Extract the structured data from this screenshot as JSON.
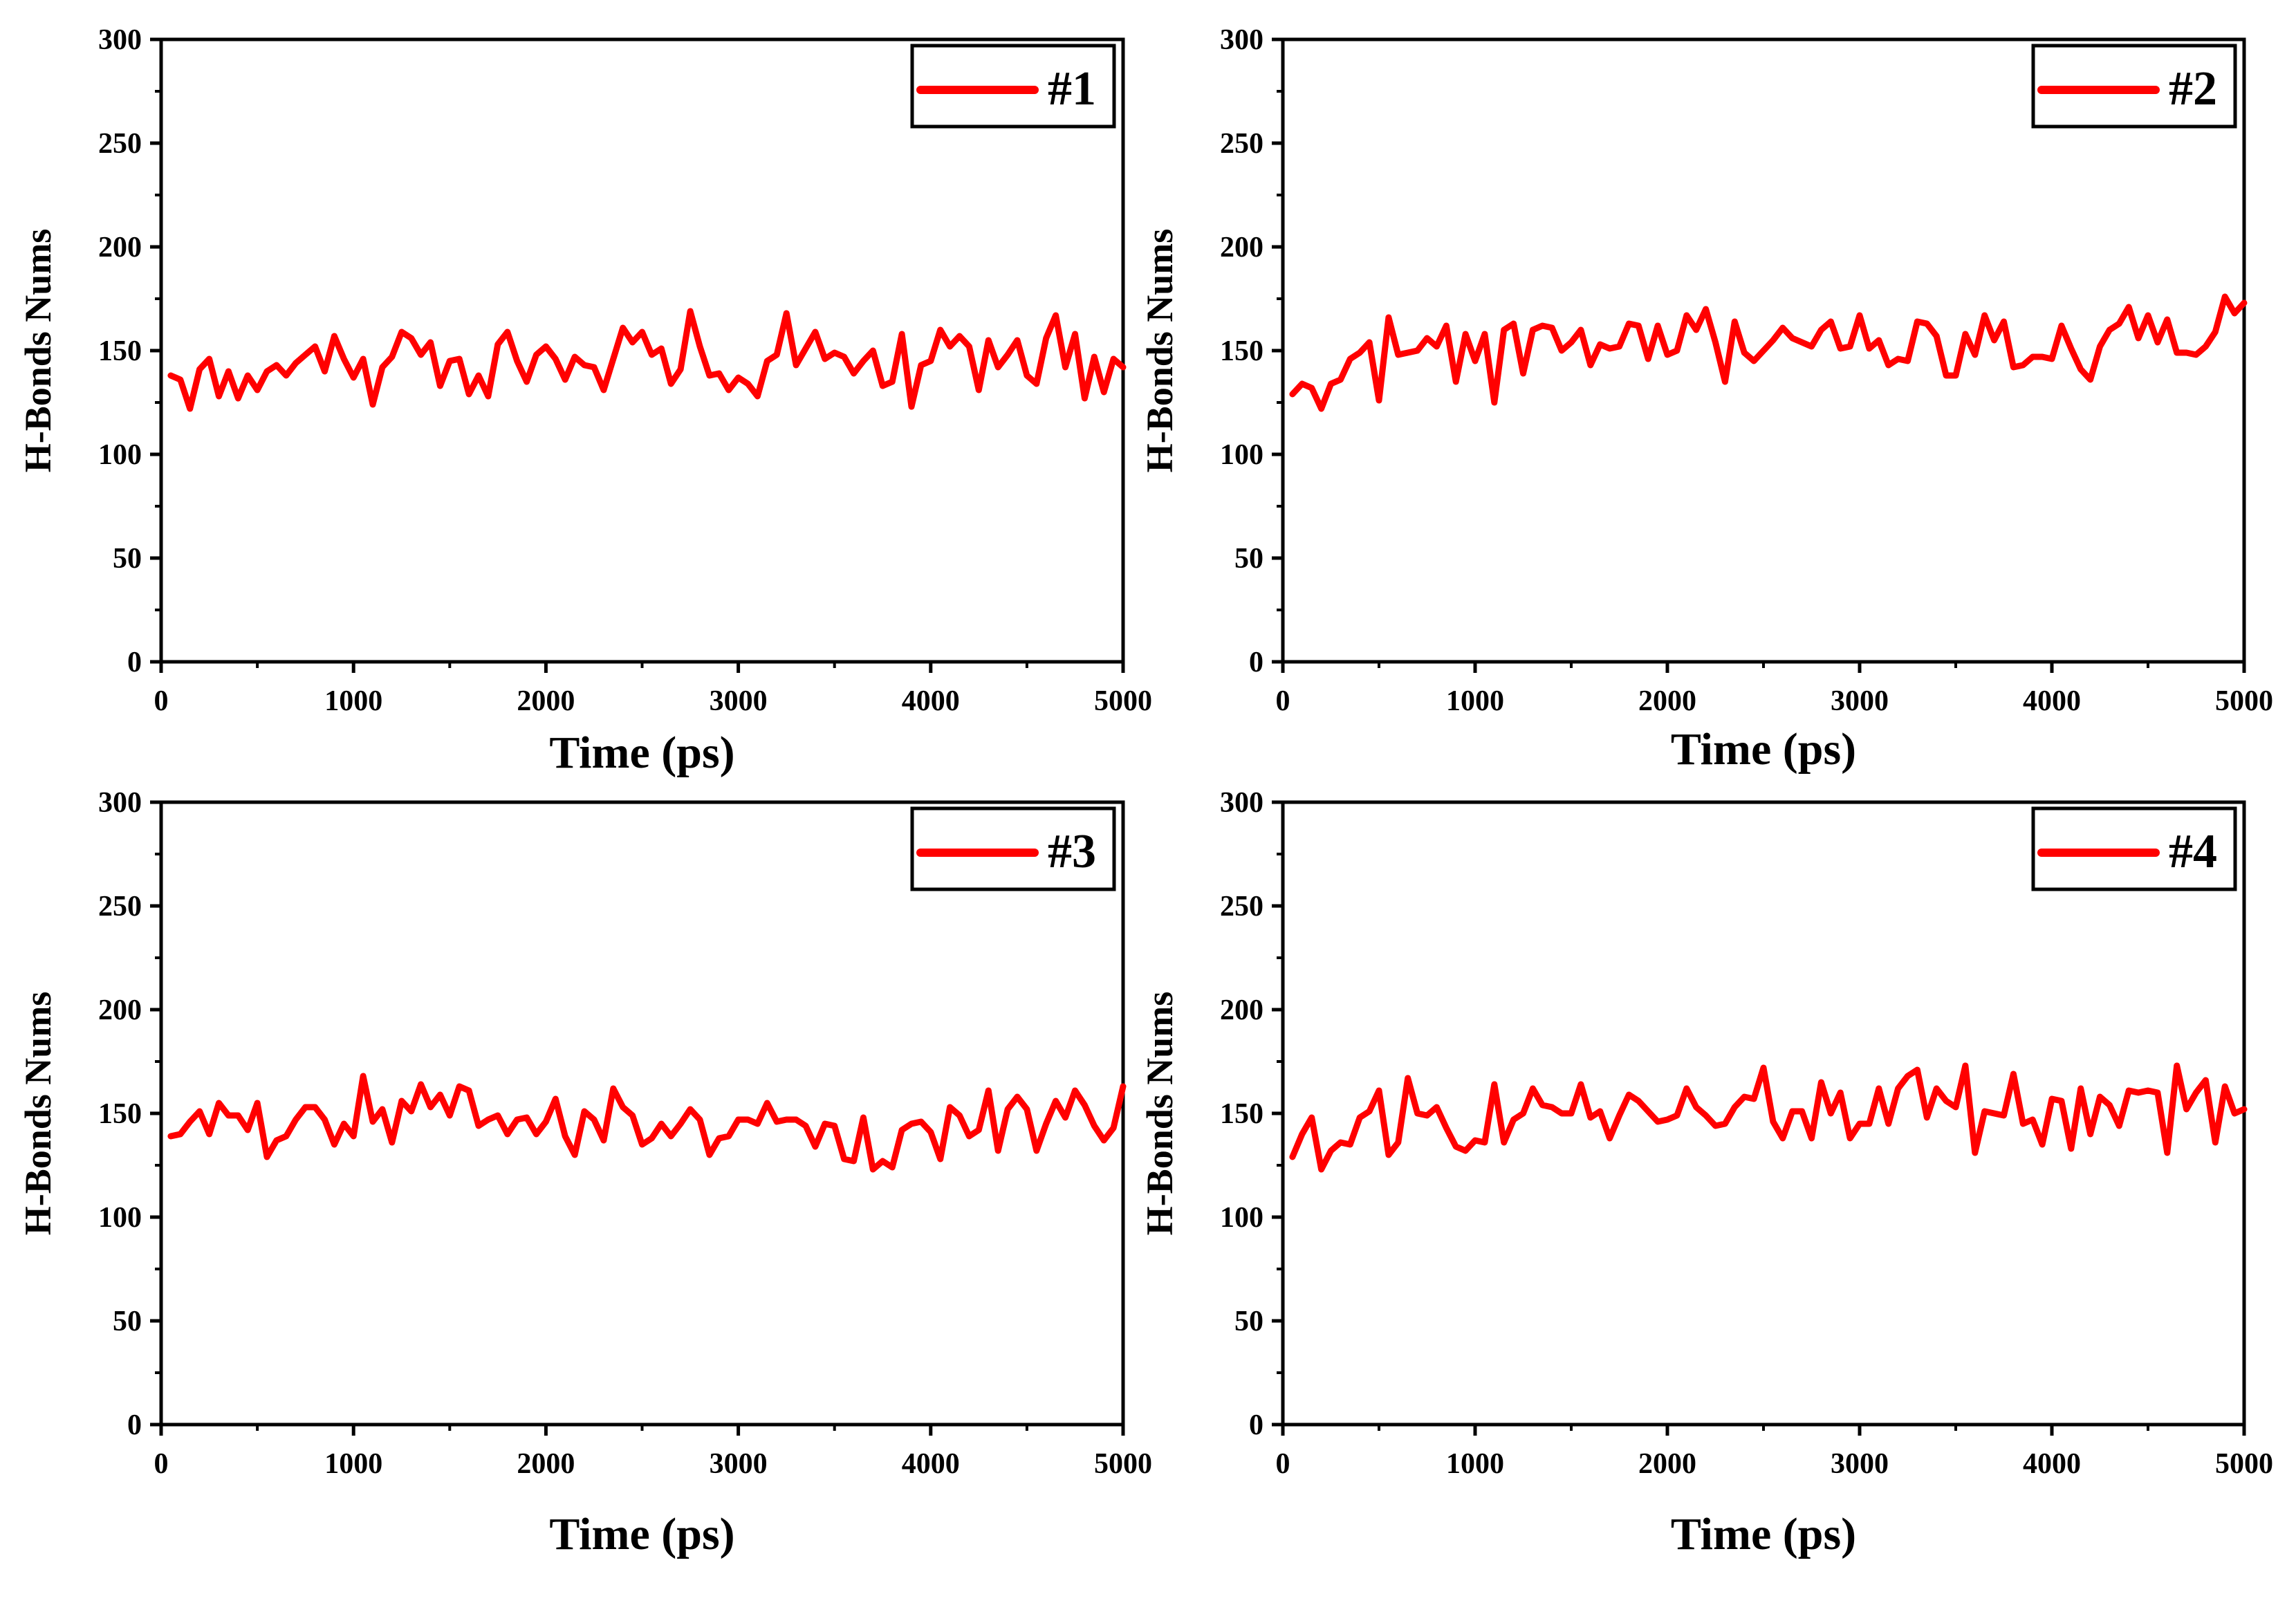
{
  "colors": {
    "line": "#ff0000",
    "axis": "#000000"
  },
  "chart_data": [
    {
      "type": "line",
      "legend": "#1",
      "legend_placement": "top-right",
      "xlabel": "Time (ps)",
      "ylabel": "H-Bonds Nums",
      "xlim": [
        0,
        5000
      ],
      "ylim": [
        0,
        300
      ],
      "xticks": [
        0,
        1000,
        2000,
        3000,
        4000,
        5000
      ],
      "yticks": [
        0,
        50,
        100,
        150,
        200,
        250,
        300
      ],
      "x_start": 50,
      "x_step": 50,
      "values": [
        138,
        136,
        122,
        141,
        146,
        128,
        140,
        127,
        138,
        131,
        140,
        143,
        138,
        144,
        148,
        152,
        140,
        157,
        146,
        137,
        146,
        124,
        142,
        147,
        159,
        156,
        148,
        154,
        133,
        145,
        146,
        129,
        138,
        128,
        153,
        159,
        145,
        135,
        148,
        152,
        146,
        136,
        147,
        143,
        142,
        131,
        146,
        161,
        154,
        159,
        148,
        151,
        134,
        141,
        169,
        152,
        138,
        139,
        131,
        137,
        134,
        128,
        145,
        148,
        168,
        143,
        151,
        159,
        146,
        149,
        147,
        139,
        145,
        150,
        133,
        135,
        158,
        123,
        143,
        145,
        160,
        152,
        157,
        152,
        131,
        155,
        142,
        148,
        155,
        138,
        134,
        156,
        167,
        142,
        158,
        127,
        147,
        130,
        146,
        142
      ]
    },
    {
      "type": "line",
      "legend": "#2",
      "legend_placement": "top-right",
      "xlabel": "Time (ps)",
      "ylabel": "H-Bonds Nums",
      "xlim": [
        0,
        5000
      ],
      "ylim": [
        0,
        300
      ],
      "xticks": [
        0,
        1000,
        2000,
        3000,
        4000,
        5000
      ],
      "yticks": [
        0,
        50,
        100,
        150,
        200,
        250,
        300
      ],
      "x_start": 50,
      "x_step": 50,
      "values": [
        129,
        134,
        132,
        122,
        134,
        136,
        146,
        149,
        154,
        126,
        166,
        148,
        149,
        150,
        156,
        152,
        162,
        135,
        158,
        145,
        158,
        125,
        160,
        163,
        139,
        160,
        162,
        161,
        150,
        154,
        160,
        143,
        153,
        151,
        152,
        163,
        162,
        146,
        162,
        148,
        150,
        167,
        160,
        170,
        154,
        135,
        164,
        149,
        145,
        150,
        155,
        161,
        156,
        154,
        152,
        160,
        164,
        151,
        152,
        167,
        151,
        155,
        143,
        146,
        145,
        164,
        163,
        157,
        138,
        138,
        158,
        148,
        167,
        155,
        164,
        142,
        143,
        147,
        147,
        146,
        162,
        151,
        141,
        136,
        152,
        160,
        163,
        171,
        156,
        167,
        154,
        165,
        149,
        149,
        148,
        152,
        159,
        176,
        168,
        173
      ]
    },
    {
      "type": "line",
      "legend": "#3",
      "legend_placement": "top-right",
      "xlabel": "Time (ps)",
      "ylabel": "H-Bonds Nums",
      "xlim": [
        0,
        5000
      ],
      "ylim": [
        0,
        300
      ],
      "xticks": [
        0,
        1000,
        2000,
        3000,
        4000,
        5000
      ],
      "yticks": [
        0,
        50,
        100,
        150,
        200,
        250,
        300
      ],
      "x_start": 50,
      "x_step": 50,
      "values": [
        139,
        140,
        146,
        151,
        140,
        155,
        149,
        149,
        142,
        155,
        129,
        137,
        139,
        147,
        153,
        153,
        147,
        135,
        145,
        139,
        168,
        146,
        152,
        136,
        156,
        151,
        164,
        153,
        159,
        149,
        163,
        161,
        144,
        147,
        149,
        140,
        147,
        148,
        140,
        146,
        157,
        139,
        130,
        151,
        147,
        137,
        162,
        153,
        149,
        135,
        138,
        145,
        139,
        145,
        152,
        147,
        130,
        138,
        139,
        147,
        147,
        145,
        155,
        146,
        147,
        147,
        144,
        134,
        145,
        144,
        128,
        127,
        148,
        123,
        127,
        124,
        142,
        145,
        146,
        141,
        128,
        153,
        149,
        139,
        142,
        161,
        132,
        152,
        158,
        152,
        132,
        145,
        156,
        148,
        161,
        154,
        144,
        137,
        143,
        163
      ]
    },
    {
      "type": "line",
      "legend": "#4",
      "legend_placement": "top-right",
      "xlabel": "Time (ps)",
      "ylabel": "H-Bonds Nums",
      "xlim": [
        0,
        5000
      ],
      "ylim": [
        0,
        300
      ],
      "xticks": [
        0,
        1000,
        2000,
        3000,
        4000,
        5000
      ],
      "yticks": [
        0,
        50,
        100,
        150,
        200,
        250,
        300
      ],
      "x_start": 50,
      "x_step": 50,
      "values": [
        129,
        140,
        148,
        123,
        132,
        136,
        135,
        148,
        151,
        161,
        130,
        136,
        167,
        150,
        149,
        153,
        143,
        134,
        132,
        137,
        136,
        164,
        136,
        147,
        150,
        162,
        154,
        153,
        150,
        150,
        164,
        148,
        151,
        138,
        149,
        159,
        156,
        151,
        146,
        147,
        149,
        162,
        153,
        149,
        144,
        145,
        153,
        158,
        157,
        172,
        146,
        138,
        151,
        151,
        138,
        165,
        150,
        160,
        138,
        145,
        145,
        162,
        145,
        162,
        168,
        171,
        148,
        162,
        156,
        153,
        173,
        131,
        151,
        150,
        149,
        169,
        145,
        147,
        135,
        157,
        156,
        133,
        162,
        140,
        158,
        154,
        144,
        161,
        160,
        161,
        160,
        131,
        173,
        152,
        160,
        166,
        136,
        163,
        150,
        152
      ]
    }
  ]
}
